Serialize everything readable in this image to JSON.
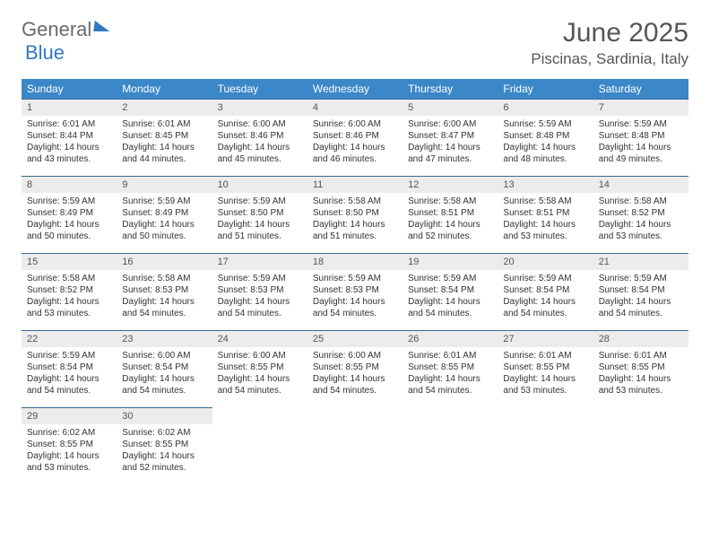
{
  "logo": {
    "text1": "General",
    "text2": "Blue"
  },
  "title": "June 2025",
  "location": "Piscinas, Sardinia, Italy",
  "header_bg": "#3b87c8",
  "daynum_bg": "#ececec",
  "rule_color": "#3b6a94",
  "weekdays": [
    "Sunday",
    "Monday",
    "Tuesday",
    "Wednesday",
    "Thursday",
    "Friday",
    "Saturday"
  ],
  "weeks": [
    [
      {
        "n": "1",
        "sr": "Sunrise: 6:01 AM",
        "ss": "Sunset: 8:44 PM",
        "d1": "Daylight: 14 hours",
        "d2": "and 43 minutes."
      },
      {
        "n": "2",
        "sr": "Sunrise: 6:01 AM",
        "ss": "Sunset: 8:45 PM",
        "d1": "Daylight: 14 hours",
        "d2": "and 44 minutes."
      },
      {
        "n": "3",
        "sr": "Sunrise: 6:00 AM",
        "ss": "Sunset: 8:46 PM",
        "d1": "Daylight: 14 hours",
        "d2": "and 45 minutes."
      },
      {
        "n": "4",
        "sr": "Sunrise: 6:00 AM",
        "ss": "Sunset: 8:46 PM",
        "d1": "Daylight: 14 hours",
        "d2": "and 46 minutes."
      },
      {
        "n": "5",
        "sr": "Sunrise: 6:00 AM",
        "ss": "Sunset: 8:47 PM",
        "d1": "Daylight: 14 hours",
        "d2": "and 47 minutes."
      },
      {
        "n": "6",
        "sr": "Sunrise: 5:59 AM",
        "ss": "Sunset: 8:48 PM",
        "d1": "Daylight: 14 hours",
        "d2": "and 48 minutes."
      },
      {
        "n": "7",
        "sr": "Sunrise: 5:59 AM",
        "ss": "Sunset: 8:48 PM",
        "d1": "Daylight: 14 hours",
        "d2": "and 49 minutes."
      }
    ],
    [
      {
        "n": "8",
        "sr": "Sunrise: 5:59 AM",
        "ss": "Sunset: 8:49 PM",
        "d1": "Daylight: 14 hours",
        "d2": "and 50 minutes."
      },
      {
        "n": "9",
        "sr": "Sunrise: 5:59 AM",
        "ss": "Sunset: 8:49 PM",
        "d1": "Daylight: 14 hours",
        "d2": "and 50 minutes."
      },
      {
        "n": "10",
        "sr": "Sunrise: 5:59 AM",
        "ss": "Sunset: 8:50 PM",
        "d1": "Daylight: 14 hours",
        "d2": "and 51 minutes."
      },
      {
        "n": "11",
        "sr": "Sunrise: 5:58 AM",
        "ss": "Sunset: 8:50 PM",
        "d1": "Daylight: 14 hours",
        "d2": "and 51 minutes."
      },
      {
        "n": "12",
        "sr": "Sunrise: 5:58 AM",
        "ss": "Sunset: 8:51 PM",
        "d1": "Daylight: 14 hours",
        "d2": "and 52 minutes."
      },
      {
        "n": "13",
        "sr": "Sunrise: 5:58 AM",
        "ss": "Sunset: 8:51 PM",
        "d1": "Daylight: 14 hours",
        "d2": "and 53 minutes."
      },
      {
        "n": "14",
        "sr": "Sunrise: 5:58 AM",
        "ss": "Sunset: 8:52 PM",
        "d1": "Daylight: 14 hours",
        "d2": "and 53 minutes."
      }
    ],
    [
      {
        "n": "15",
        "sr": "Sunrise: 5:58 AM",
        "ss": "Sunset: 8:52 PM",
        "d1": "Daylight: 14 hours",
        "d2": "and 53 minutes."
      },
      {
        "n": "16",
        "sr": "Sunrise: 5:58 AM",
        "ss": "Sunset: 8:53 PM",
        "d1": "Daylight: 14 hours",
        "d2": "and 54 minutes."
      },
      {
        "n": "17",
        "sr": "Sunrise: 5:59 AM",
        "ss": "Sunset: 8:53 PM",
        "d1": "Daylight: 14 hours",
        "d2": "and 54 minutes."
      },
      {
        "n": "18",
        "sr": "Sunrise: 5:59 AM",
        "ss": "Sunset: 8:53 PM",
        "d1": "Daylight: 14 hours",
        "d2": "and 54 minutes."
      },
      {
        "n": "19",
        "sr": "Sunrise: 5:59 AM",
        "ss": "Sunset: 8:54 PM",
        "d1": "Daylight: 14 hours",
        "d2": "and 54 minutes."
      },
      {
        "n": "20",
        "sr": "Sunrise: 5:59 AM",
        "ss": "Sunset: 8:54 PM",
        "d1": "Daylight: 14 hours",
        "d2": "and 54 minutes."
      },
      {
        "n": "21",
        "sr": "Sunrise: 5:59 AM",
        "ss": "Sunset: 8:54 PM",
        "d1": "Daylight: 14 hours",
        "d2": "and 54 minutes."
      }
    ],
    [
      {
        "n": "22",
        "sr": "Sunrise: 5:59 AM",
        "ss": "Sunset: 8:54 PM",
        "d1": "Daylight: 14 hours",
        "d2": "and 54 minutes."
      },
      {
        "n": "23",
        "sr": "Sunrise: 6:00 AM",
        "ss": "Sunset: 8:54 PM",
        "d1": "Daylight: 14 hours",
        "d2": "and 54 minutes."
      },
      {
        "n": "24",
        "sr": "Sunrise: 6:00 AM",
        "ss": "Sunset: 8:55 PM",
        "d1": "Daylight: 14 hours",
        "d2": "and 54 minutes."
      },
      {
        "n": "25",
        "sr": "Sunrise: 6:00 AM",
        "ss": "Sunset: 8:55 PM",
        "d1": "Daylight: 14 hours",
        "d2": "and 54 minutes."
      },
      {
        "n": "26",
        "sr": "Sunrise: 6:01 AM",
        "ss": "Sunset: 8:55 PM",
        "d1": "Daylight: 14 hours",
        "d2": "and 54 minutes."
      },
      {
        "n": "27",
        "sr": "Sunrise: 6:01 AM",
        "ss": "Sunset: 8:55 PM",
        "d1": "Daylight: 14 hours",
        "d2": "and 53 minutes."
      },
      {
        "n": "28",
        "sr": "Sunrise: 6:01 AM",
        "ss": "Sunset: 8:55 PM",
        "d1": "Daylight: 14 hours",
        "d2": "and 53 minutes."
      }
    ],
    [
      {
        "n": "29",
        "sr": "Sunrise: 6:02 AM",
        "ss": "Sunset: 8:55 PM",
        "d1": "Daylight: 14 hours",
        "d2": "and 53 minutes."
      },
      {
        "n": "30",
        "sr": "Sunrise: 6:02 AM",
        "ss": "Sunset: 8:55 PM",
        "d1": "Daylight: 14 hours",
        "d2": "and 52 minutes."
      },
      null,
      null,
      null,
      null,
      null
    ]
  ]
}
